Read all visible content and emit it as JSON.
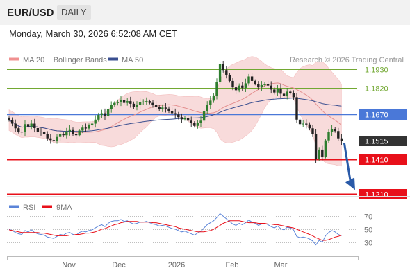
{
  "header": {
    "symbol": "EUR/USD",
    "period": "DAILY",
    "datetime": "Monday, March 30, 2026 6:52:08 AM CET"
  },
  "legend": {
    "ma20_bb": "MA 20 + Bollinger Bands",
    "ma50": "MA 50",
    "source": "Research © 2026 Trading Central",
    "rsi": "RSI",
    "rsi9ma": "9MA"
  },
  "colors": {
    "resistance": "#72a832",
    "pivot": "#4a78d8",
    "support": "#e8101a",
    "bollinger_fill": "#f8d8d8",
    "ma20": "#e49090",
    "ma50": "#3a4f90",
    "candle_up": "#2e7d2e",
    "candle_down": "#222222",
    "arrow": "#2a5aa8",
    "rsi_line": "#5b84d8",
    "rsi_ma": "#e8101a"
  },
  "chart_data": [
    {
      "type": "candlestick",
      "x_ticks": [
        "Nov",
        "Dec",
        "2026",
        "Feb",
        "Mar"
      ],
      "ylim": [
        1.12,
        1.195
      ],
      "levels": [
        {
          "value": 1.193,
          "label": "1.1930",
          "kind": "resistance"
        },
        {
          "value": 1.182,
          "label": "1.1820",
          "kind": "resistance"
        },
        {
          "value": 1.167,
          "label": "1.1670",
          "kind": "pivot"
        },
        {
          "value": 1.1515,
          "label": "1.1515",
          "kind": "last_price"
        },
        {
          "value": 1.141,
          "label": "1.1410",
          "kind": "support"
        },
        {
          "value": 1.121,
          "label": "1.1210",
          "kind": "support"
        }
      ],
      "forecast_arrow": {
        "from": 1.1515,
        "to": 1.1255
      },
      "closes": [
        1.1635,
        1.1615,
        1.1588,
        1.1568,
        1.1565,
        1.1612,
        1.1598,
        1.1615,
        1.1589,
        1.1569,
        1.1565,
        1.1555,
        1.153,
        1.152,
        1.1515,
        1.1538,
        1.1555,
        1.1548,
        1.157,
        1.1578,
        1.1555,
        1.1548,
        1.1575,
        1.1592,
        1.1587,
        1.1605,
        1.1615,
        1.1638,
        1.1665,
        1.1675,
        1.1658,
        1.1698,
        1.1722,
        1.1735,
        1.1738,
        1.1752,
        1.1735,
        1.1745,
        1.173,
        1.171,
        1.1725,
        1.1738,
        1.1742,
        1.1745,
        1.1735,
        1.1722,
        1.1712,
        1.1698,
        1.1708,
        1.1702,
        1.1688,
        1.1675,
        1.1668,
        1.1652,
        1.164,
        1.1648,
        1.1632,
        1.1618,
        1.1602,
        1.1618,
        1.1632,
        1.1688,
        1.1725,
        1.1748,
        1.1775,
        1.1855,
        1.1962,
        1.1925,
        1.1898,
        1.1862,
        1.1825,
        1.1808,
        1.1835,
        1.1822,
        1.1848,
        1.1888,
        1.1862,
        1.1845,
        1.1825,
        1.1838,
        1.1845,
        1.1835,
        1.1812,
        1.1795,
        1.1818,
        1.1788,
        1.1775,
        1.18,
        1.1792,
        1.1768,
        1.1638,
        1.1612,
        1.1615,
        1.161,
        1.1588,
        1.1555,
        1.1412,
        1.1465,
        1.1422,
        1.1518,
        1.1565,
        1.1585,
        1.1572,
        1.153,
        1.1515
      ]
    },
    {
      "type": "line",
      "x_ticks": [
        "Nov",
        "Dec",
        "2026",
        "Feb",
        "Mar"
      ],
      "ylim": [
        20,
        80
      ],
      "y_ticks": [
        70,
        50,
        30
      ],
      "series": [
        {
          "name": "RSI",
          "values": [
            50,
            48,
            45,
            43,
            42,
            48,
            46,
            49,
            45,
            43,
            42,
            41,
            38,
            37,
            36,
            39,
            42,
            41,
            44,
            45,
            42,
            41,
            45,
            47,
            46,
            48,
            49,
            52,
            55,
            57,
            54,
            59,
            62,
            63,
            63,
            65,
            62,
            63,
            60,
            58,
            59,
            61,
            61,
            62,
            60,
            58,
            57,
            55,
            56,
            55,
            53,
            51,
            50,
            48,
            46,
            47,
            45,
            43,
            41,
            44,
            47,
            52,
            57,
            60,
            63,
            68,
            74,
            70,
            66,
            62,
            58,
            56,
            59,
            57,
            60,
            64,
            61,
            59,
            56,
            58,
            59,
            57,
            54,
            52,
            55,
            51,
            49,
            53,
            52,
            49,
            39,
            37,
            38,
            37,
            35,
            32,
            26,
            33,
            30,
            40,
            45,
            48,
            46,
            42,
            40
          ]
        },
        {
          "name": "9MA",
          "values": [
            49,
            48,
            47,
            46,
            45,
            45,
            45,
            45,
            45,
            45,
            44,
            44,
            43,
            42,
            41,
            40,
            40,
            40,
            40,
            41,
            41,
            42,
            42,
            43,
            44,
            44,
            45,
            46,
            48,
            50,
            51,
            53,
            55,
            57,
            58,
            60,
            61,
            62,
            62,
            62,
            62,
            61,
            61,
            61,
            61,
            60,
            60,
            59,
            58,
            57,
            56,
            55,
            54,
            52,
            51,
            50,
            49,
            48,
            47,
            46,
            46,
            46,
            47,
            48,
            50,
            53,
            56,
            59,
            61,
            63,
            63,
            63,
            63,
            62,
            61,
            60,
            60,
            60,
            59,
            59,
            59,
            58,
            58,
            57,
            57,
            56,
            55,
            54,
            53,
            52,
            50,
            48,
            46,
            44,
            42,
            40,
            37,
            35,
            33,
            33,
            34,
            36,
            38,
            39,
            41
          ]
        }
      ]
    }
  ]
}
